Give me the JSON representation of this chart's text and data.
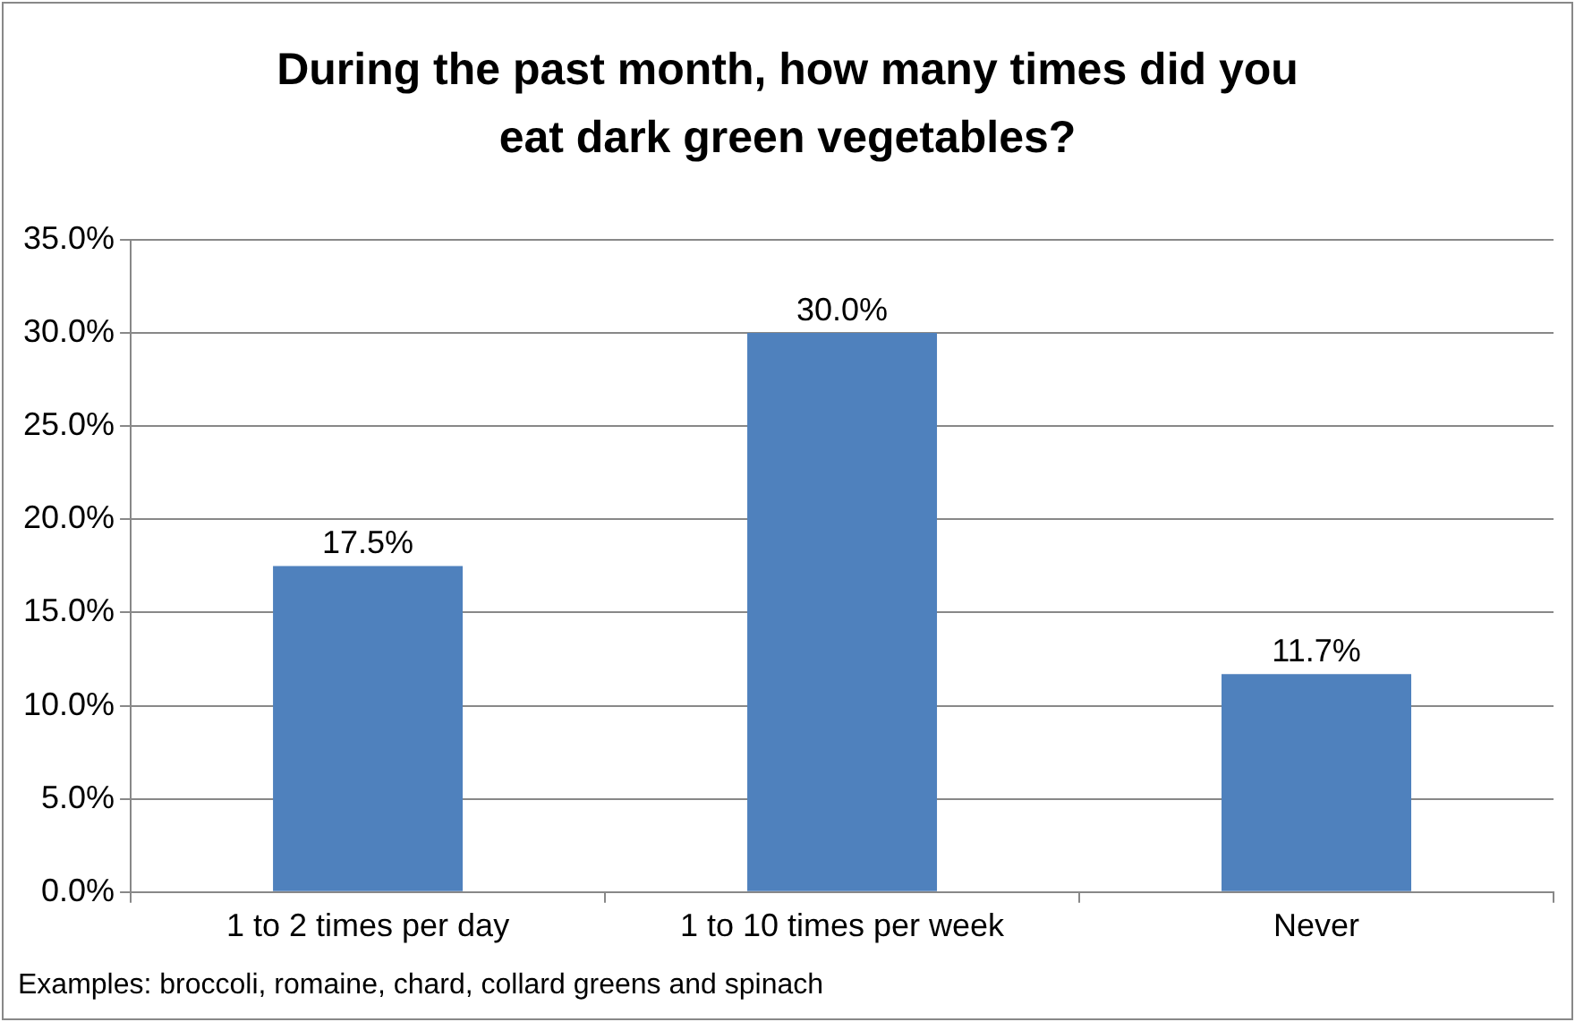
{
  "chart_data": {
    "type": "bar",
    "title": "During the past month, how many times did you eat dark green vegetables?",
    "categories": [
      "1 to 2 times per day",
      "1 to 10 times per week",
      "Never"
    ],
    "values": [
      17.5,
      30.0,
      11.7
    ],
    "value_labels": [
      "17.5%",
      "30.0%",
      "11.7%"
    ],
    "color": "#4f81bd",
    "ylim": [
      0,
      35
    ],
    "yticks": [
      {
        "value": 0,
        "label": "0.0%"
      },
      {
        "value": 5,
        "label": "5.0%"
      },
      {
        "value": 10,
        "label": "10.0%"
      },
      {
        "value": 15,
        "label": "15.0%"
      },
      {
        "value": 20,
        "label": "20.0%"
      },
      {
        "value": 25,
        "label": "25.0%"
      },
      {
        "value": 30,
        "label": "30.0%"
      },
      {
        "value": 35,
        "label": "35.0%"
      }
    ],
    "grid": "y",
    "annotations": [
      "Examples: broccoli, romaine, chard, collard greens and spinach"
    ]
  }
}
